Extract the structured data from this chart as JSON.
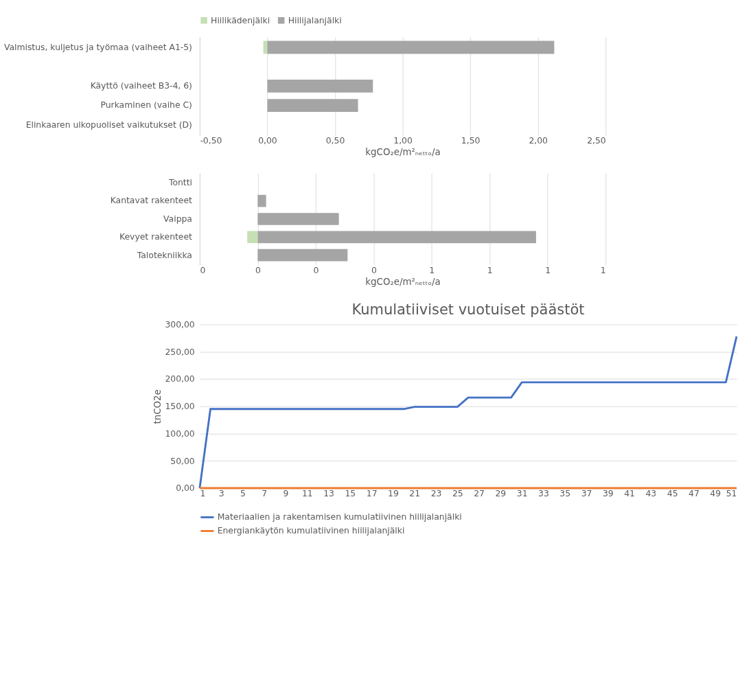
{
  "chart_data": [
    {
      "type": "bar",
      "orientation": "horizontal",
      "categories": [
        "Valmistus, kuljetus ja työmaa (vaiheet A1-5)",
        null,
        "Käyttö (vaiheet B3-4, 6)",
        "Purkaminen (vaihe C)",
        "Elinkaaren ulkopuoliset vaikutukset (D)"
      ],
      "series": [
        {
          "name": "Hiilikädenjälki",
          "color": "#c5e0b4",
          "values": [
            -0.03,
            null,
            null,
            null,
            null
          ]
        },
        {
          "name": "Hiilijalanjälki",
          "color": "#a5a5a5",
          "values": [
            2.12,
            null,
            0.78,
            0.67,
            null
          ]
        }
      ],
      "xlim": [
        -0.5,
        2.5
      ],
      "xticks": [
        {
          "value": -0.5,
          "label": "-0,50"
        },
        {
          "value": 0,
          "label": "0,00"
        },
        {
          "value": 0.5,
          "label": "0,50"
        },
        {
          "value": 1.0,
          "label": "1,00"
        },
        {
          "value": 1.5,
          "label": "1,50"
        },
        {
          "value": 2.0,
          "label": "2,00"
        },
        {
          "value": 2.5,
          "label": "2,50"
        }
      ],
      "xlabel": "kgCO₂e/m²ₙₑₜₜₒ/a",
      "grid": "x",
      "legend": "top"
    },
    {
      "type": "bar",
      "orientation": "horizontal",
      "categories": [
        "Tontti",
        "Kantavat rakenteet",
        "Vaippa",
        "Kevyet rakenteet",
        "Talotekniikka"
      ],
      "series": [
        {
          "color": "#c5e0b4",
          "values": [
            null,
            null,
            null,
            -0.036,
            null
          ]
        },
        {
          "color": "#a5a5a5",
          "values": [
            null,
            0.029,
            0.28,
            0.96,
            0.31
          ]
        }
      ],
      "xlim": [
        -0.2,
        1.2
      ],
      "xticks": [
        {
          "value": -0.2,
          "label": "0"
        },
        {
          "value": 0,
          "label": "0"
        },
        {
          "value": 0.2,
          "label": "0"
        },
        {
          "value": 0.4,
          "label": "0"
        },
        {
          "value": 0.6,
          "label": "1"
        },
        {
          "value": 0.8,
          "label": "1"
        },
        {
          "value": 1.0,
          "label": "1"
        },
        {
          "value": 1.2,
          "label": "1"
        }
      ],
      "xlabel": "kgCO₂e/m²ₙₑₜₜₒ/a",
      "grid": "x",
      "legend": false
    },
    {
      "type": "line",
      "title": "Kumulatiiviset vuotuiset päästöt",
      "ylabel": "tnCO2e",
      "x": [
        1,
        2,
        3,
        4,
        5,
        6,
        7,
        8,
        9,
        10,
        11,
        12,
        13,
        14,
        15,
        16,
        17,
        18,
        19,
        20,
        21,
        22,
        23,
        24,
        25,
        26,
        27,
        28,
        29,
        30,
        31,
        32,
        33,
        34,
        35,
        36,
        37,
        38,
        39,
        40,
        41,
        42,
        43,
        44,
        45,
        46,
        47,
        48,
        49,
        50,
        51
      ],
      "series": [
        {
          "name": "Materiaalien ja rakentamisen kumulatiivinen hiilijalanjälki",
          "color": "#4472c4",
          "values": [
            0,
            145,
            145,
            145,
            145,
            145,
            145,
            145,
            145,
            145,
            145,
            145,
            145,
            145,
            145,
            145,
            145,
            145,
            145,
            145,
            149,
            149,
            149,
            149,
            149,
            166,
            166,
            166,
            166,
            166,
            194,
            194,
            194,
            194,
            194,
            194,
            194,
            194,
            194,
            194,
            194,
            194,
            194,
            194,
            194,
            194,
            194,
            194,
            194,
            194,
            278
          ]
        },
        {
          "name": "Energiankäytön kumulatiivinen hiilijalanjälki",
          "color": "#ed7d31",
          "values": [
            0,
            0,
            0,
            0,
            0,
            0,
            0,
            0,
            0,
            0,
            0,
            0,
            0,
            0,
            0,
            0,
            0,
            0,
            0,
            0,
            0,
            0,
            0,
            0,
            0,
            0,
            0,
            0,
            0,
            0,
            0,
            0,
            0,
            0,
            0,
            0,
            0,
            0,
            0,
            0,
            0,
            0,
            0,
            0,
            0,
            0,
            0,
            0,
            0,
            0,
            0
          ]
        }
      ],
      "xlim": [
        1,
        51
      ],
      "xticks": [
        1,
        3,
        5,
        7,
        9,
        11,
        13,
        15,
        17,
        19,
        21,
        23,
        25,
        27,
        29,
        31,
        33,
        35,
        37,
        39,
        41,
        43,
        45,
        47,
        49,
        51
      ],
      "ylim": [
        0,
        300
      ],
      "yticks": [
        {
          "value": 0,
          "label": "0,00"
        },
        {
          "value": 50,
          "label": "50,00"
        },
        {
          "value": 100,
          "label": "100,00"
        },
        {
          "value": 150,
          "label": "150,00"
        },
        {
          "value": 200,
          "label": "200,00"
        },
        {
          "value": 250,
          "label": "250,00"
        },
        {
          "value": 300,
          "label": "300,00"
        }
      ],
      "grid": "y",
      "legend": "bottom",
      "line_style": "solid",
      "marker": "none"
    }
  ]
}
